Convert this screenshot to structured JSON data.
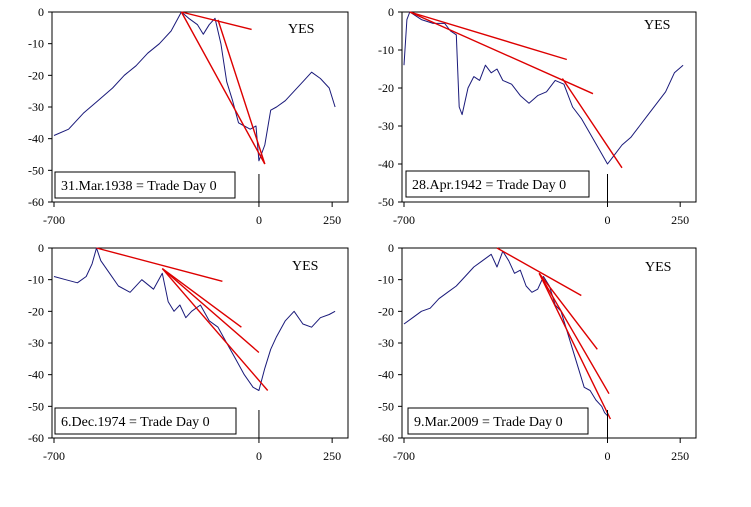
{
  "chart_data": [
    {
      "type": "line",
      "caption": "31.Mar.1938 = Trade Day 0",
      "label": "YES",
      "x_tick_labels": [
        "-700",
        "0",
        "250"
      ],
      "y_tick_labels": [
        "0",
        "-10",
        "-20",
        "-30",
        "-40",
        "-50",
        "-60"
      ],
      "xlim": [
        -700,
        270
      ],
      "ylim": [
        -60,
        0
      ],
      "series": [
        {
          "type": "price",
          "color": "#1a1a7a",
          "x": [
            -700,
            -650,
            -600,
            -550,
            -500,
            -460,
            -420,
            -380,
            -340,
            -300,
            -265,
            -240,
            -210,
            -190,
            -170,
            -150,
            -130,
            -110,
            -90,
            -70,
            -50,
            -30,
            -10,
            0,
            20,
            40,
            60,
            90,
            120,
            150,
            180,
            210,
            240,
            260
          ],
          "y": [
            -39,
            -37,
            -32,
            -28,
            -24,
            -20,
            -17,
            -13,
            -10,
            -6,
            0,
            -2,
            -4,
            -7,
            -4,
            -2,
            -10,
            -22,
            -28,
            -35,
            -36,
            -37,
            -36,
            -47,
            -42,
            -31,
            -30,
            -28,
            -25,
            -22,
            -19,
            -21,
            -24,
            -30
          ]
        },
        {
          "type": "trendline",
          "color": "#dd0000",
          "x": [
            -265,
            -25
          ],
          "y": [
            0,
            -5.5
          ]
        },
        {
          "type": "trendline",
          "color": "#dd0000",
          "x": [
            -265,
            20
          ],
          "y": [
            0,
            -48
          ]
        },
        {
          "type": "trendline",
          "color": "#dd0000",
          "x": [
            -140,
            20
          ],
          "y": [
            -2.5,
            -48
          ]
        }
      ],
      "day0_marker": 0
    },
    {
      "type": "line",
      "caption": "28.Apr.1942 = Trade Day 0",
      "label": "YES",
      "x_tick_labels": [
        "-700",
        "0",
        "250"
      ],
      "y_tick_labels": [
        "0",
        "-10",
        "-20",
        "-30",
        "-40",
        "-50"
      ],
      "xlim": [
        -700,
        270
      ],
      "ylim": [
        -50,
        0
      ],
      "series": [
        {
          "type": "price",
          "color": "#1a1a7a",
          "x": [
            -700,
            -690,
            -680,
            -640,
            -600,
            -560,
            -540,
            -520,
            -510,
            -500,
            -480,
            -460,
            -440,
            -420,
            -400,
            -380,
            -360,
            -330,
            -300,
            -270,
            -240,
            -210,
            -180,
            -150,
            -120,
            -90,
            -60,
            -30,
            0,
            20,
            50,
            80,
            110,
            140,
            170,
            200,
            230,
            260
          ],
          "y": [
            -14,
            -2,
            0,
            -2,
            -3,
            -3,
            -5,
            -6,
            -25,
            -27,
            -20,
            -17,
            -18,
            -14,
            -16,
            -15,
            -18,
            -19,
            -22,
            -24,
            -22,
            -21,
            -18,
            -19,
            -25,
            -28,
            -32,
            -36,
            -40,
            -38,
            -35,
            -33,
            -30,
            -27,
            -24,
            -21,
            -16,
            -14
          ]
        },
        {
          "type": "trendline",
          "color": "#dd0000",
          "x": [
            -680,
            -140
          ],
          "y": [
            0,
            -12.5
          ]
        },
        {
          "type": "trendline",
          "color": "#dd0000",
          "x": [
            -680,
            -50
          ],
          "y": [
            0,
            -21.5
          ]
        },
        {
          "type": "trendline",
          "color": "#dd0000",
          "x": [
            -155,
            50
          ],
          "y": [
            -17.5,
            -41
          ]
        }
      ],
      "day0_marker": 0
    },
    {
      "type": "line",
      "caption": "6.Dec.1974 = Trade Day 0",
      "label": "YES",
      "x_tick_labels": [
        "-700",
        "0",
        "250"
      ],
      "y_tick_labels": [
        "0",
        "-10",
        "-20",
        "-30",
        "-40",
        "-50",
        "-60"
      ],
      "xlim": [
        -700,
        270
      ],
      "ylim": [
        -60,
        0
      ],
      "series": [
        {
          "type": "price",
          "color": "#1a1a7a",
          "x": [
            -700,
            -660,
            -620,
            -590,
            -570,
            -555,
            -540,
            -510,
            -480,
            -440,
            -400,
            -360,
            -330,
            -310,
            -290,
            -270,
            -250,
            -230,
            -200,
            -170,
            -140,
            -110,
            -80,
            -50,
            -20,
            0,
            20,
            40,
            60,
            90,
            120,
            150,
            180,
            210,
            240,
            260
          ],
          "y": [
            -9,
            -10,
            -11,
            -9,
            -5,
            0,
            -4,
            -8,
            -12,
            -14,
            -10,
            -13,
            -8,
            -17,
            -20,
            -18,
            -22,
            -20,
            -18,
            -23,
            -25,
            -30,
            -35,
            -40,
            -44,
            -45,
            -38,
            -32,
            -28,
            -23,
            -20,
            -24,
            -25,
            -22,
            -21,
            -20
          ]
        },
        {
          "type": "trendline",
          "color": "#dd0000",
          "x": [
            -555,
            -125
          ],
          "y": [
            0,
            -10.5
          ]
        },
        {
          "type": "trendline",
          "color": "#dd0000",
          "x": [
            -330,
            -60
          ],
          "y": [
            -6.5,
            -25
          ]
        },
        {
          "type": "trendline",
          "color": "#dd0000",
          "x": [
            -330,
            0
          ],
          "y": [
            -6.5,
            -33
          ]
        },
        {
          "type": "trendline",
          "color": "#dd0000",
          "x": [
            -330,
            30
          ],
          "y": [
            -6.5,
            -45
          ]
        }
      ],
      "day0_marker": 0
    },
    {
      "type": "line",
      "caption": "9.Mar.2009 = Trade Day 0",
      "label": "YES",
      "x_tick_labels": [
        "-700",
        "0",
        "250"
      ],
      "y_tick_labels": [
        "0",
        "-10",
        "-20",
        "-30",
        "-40",
        "-50",
        "-60"
      ],
      "xlim": [
        -700,
        270
      ],
      "ylim": [
        -60,
        0
      ],
      "series": [
        {
          "type": "price",
          "color": "#1a1a7a",
          "x": [
            -700,
            -670,
            -640,
            -610,
            -580,
            -550,
            -520,
            -490,
            -460,
            -430,
            -400,
            -380,
            -360,
            -340,
            -320,
            -300,
            -280,
            -260,
            -240,
            -220,
            -200,
            -180,
            -160,
            -140,
            -120,
            -100,
            -80,
            -60,
            -40,
            -20,
            -10,
            0
          ],
          "y": [
            -24,
            -22,
            -20,
            -19,
            -16,
            -14,
            -12,
            -9,
            -6,
            -4,
            -2,
            -6,
            -1,
            -4,
            -8,
            -7,
            -12,
            -14,
            -13,
            -9,
            -12,
            -18,
            -20,
            -26,
            -32,
            -38,
            -44,
            -45,
            -48,
            -50,
            -52,
            -53
          ]
        },
        {
          "type": "trendline",
          "color": "#dd0000",
          "x": [
            -380,
            -90
          ],
          "y": [
            0,
            -15
          ]
        },
        {
          "type": "trendline",
          "color": "#dd0000",
          "x": [
            -235,
            -35
          ],
          "y": [
            -8,
            -32
          ]
        },
        {
          "type": "trendline",
          "color": "#dd0000",
          "x": [
            -235,
            5
          ],
          "y": [
            -8,
            -46
          ]
        },
        {
          "type": "trendline",
          "color": "#dd0000",
          "x": [
            -235,
            10
          ],
          "y": [
            -8,
            -54
          ]
        }
      ],
      "day0_marker": 0
    }
  ]
}
